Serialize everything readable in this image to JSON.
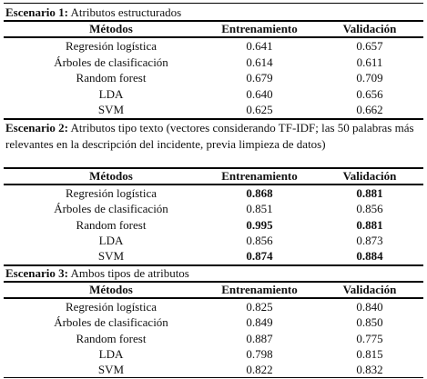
{
  "scenarios": [
    {
      "label": "Escenario 1:",
      "description": "Atributos estructurados",
      "headers": {
        "method": "Métodos",
        "train": "Entrenamiento",
        "val": "Validación"
      },
      "rows": [
        {
          "method": "Regresión logística",
          "train": "0.641",
          "val": "0.657",
          "train_bold": false,
          "val_bold": false
        },
        {
          "method": "Árboles de clasificación",
          "train": "0.614",
          "val": "0.611",
          "train_bold": false,
          "val_bold": false
        },
        {
          "method": "Random forest",
          "train": "0.679",
          "val": "0.709",
          "train_bold": false,
          "val_bold": false
        },
        {
          "method": "LDA",
          "train": "0.640",
          "val": "0.656",
          "train_bold": false,
          "val_bold": false
        },
        {
          "method": "SVM",
          "train": "0.625",
          "val": "0.662",
          "train_bold": false,
          "val_bold": false
        }
      ]
    },
    {
      "label": "Escenario 2:",
      "description": "Atributos tipo texto (vectores considerando TF-IDF; las 50 palabras más relevantes en la descripción del incidente, previa limpieza de datos)",
      "headers": {
        "method": "Métodos",
        "train": "Entrenamiento",
        "val": "Validación"
      },
      "rows": [
        {
          "method": "Regresión logística",
          "train": "0.868",
          "val": "0.881",
          "train_bold": true,
          "val_bold": true
        },
        {
          "method": "Árboles de clasificación",
          "train": "0.851",
          "val": "0.856",
          "train_bold": false,
          "val_bold": false
        },
        {
          "method": "Random forest",
          "train": "0.995",
          "val": "0.881",
          "train_bold": true,
          "val_bold": true
        },
        {
          "method": "LDA",
          "train": "0.856",
          "val": "0.873",
          "train_bold": false,
          "val_bold": false
        },
        {
          "method": "SVM",
          "train": "0.874",
          "val": "0.884",
          "train_bold": true,
          "val_bold": true
        }
      ]
    },
    {
      "label": "Escenario 3:",
      "description": "Ambos tipos de atributos",
      "headers": {
        "method": "Métodos",
        "train": "Entrenamiento",
        "val": "Validación"
      },
      "rows": [
        {
          "method": "Regresión logística",
          "train": "0.825",
          "val": "0.840",
          "train_bold": false,
          "val_bold": false
        },
        {
          "method": "Árboles de clasificación",
          "train": "0.849",
          "val": "0.850",
          "train_bold": false,
          "val_bold": false
        },
        {
          "method": "Random forest",
          "train": "0.887",
          "val": "0.775",
          "train_bold": false,
          "val_bold": false
        },
        {
          "method": "LDA",
          "train": "0.798",
          "val": "0.815",
          "train_bold": false,
          "val_bold": false
        },
        {
          "method": "SVM",
          "train": "0.822",
          "val": "0.832",
          "train_bold": false,
          "val_bold": false
        }
      ]
    }
  ]
}
